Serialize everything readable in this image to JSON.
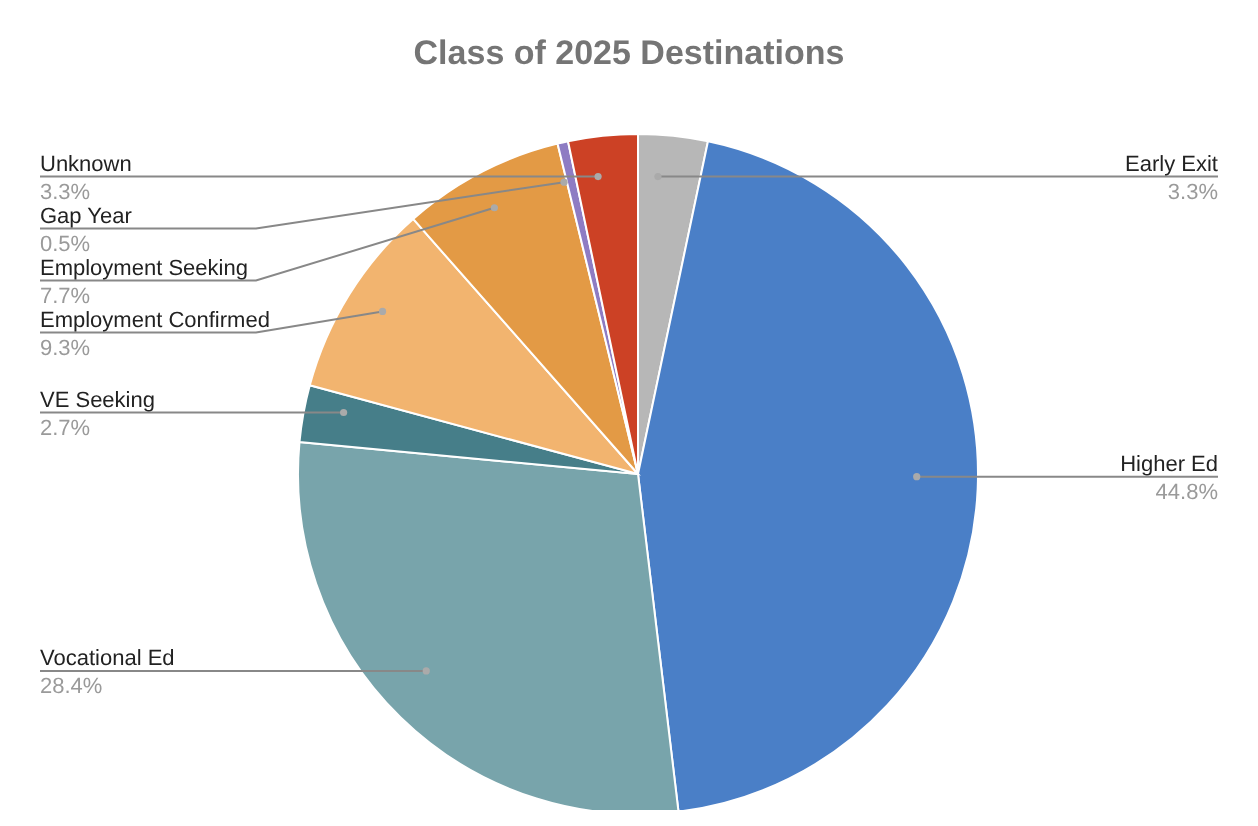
{
  "chart_data": {
    "type": "pie",
    "title": "Class of 2025 Destinations",
    "categories": [
      "Early Exit",
      "Higher Ed",
      "Vocational Ed",
      "VE Seeking",
      "Employment Confirmed",
      "Employment Seeking",
      "Gap Year",
      "Unknown"
    ],
    "values": [
      3.3,
      44.8,
      28.4,
      2.7,
      9.3,
      7.7,
      0.5,
      3.3
    ],
    "colors": [
      "#b7b7b7",
      "#4a7fc7",
      "#78a4ab",
      "#467e89",
      "#f2b46f",
      "#e39a45",
      "#8e7cc3",
      "#cc4125"
    ],
    "value_labels": [
      "3.3%",
      "44.8%",
      "28.4%",
      "2.7%",
      "9.3%",
      "7.7%",
      "0.5%",
      "3.3%"
    ],
    "legend": false
  }
}
